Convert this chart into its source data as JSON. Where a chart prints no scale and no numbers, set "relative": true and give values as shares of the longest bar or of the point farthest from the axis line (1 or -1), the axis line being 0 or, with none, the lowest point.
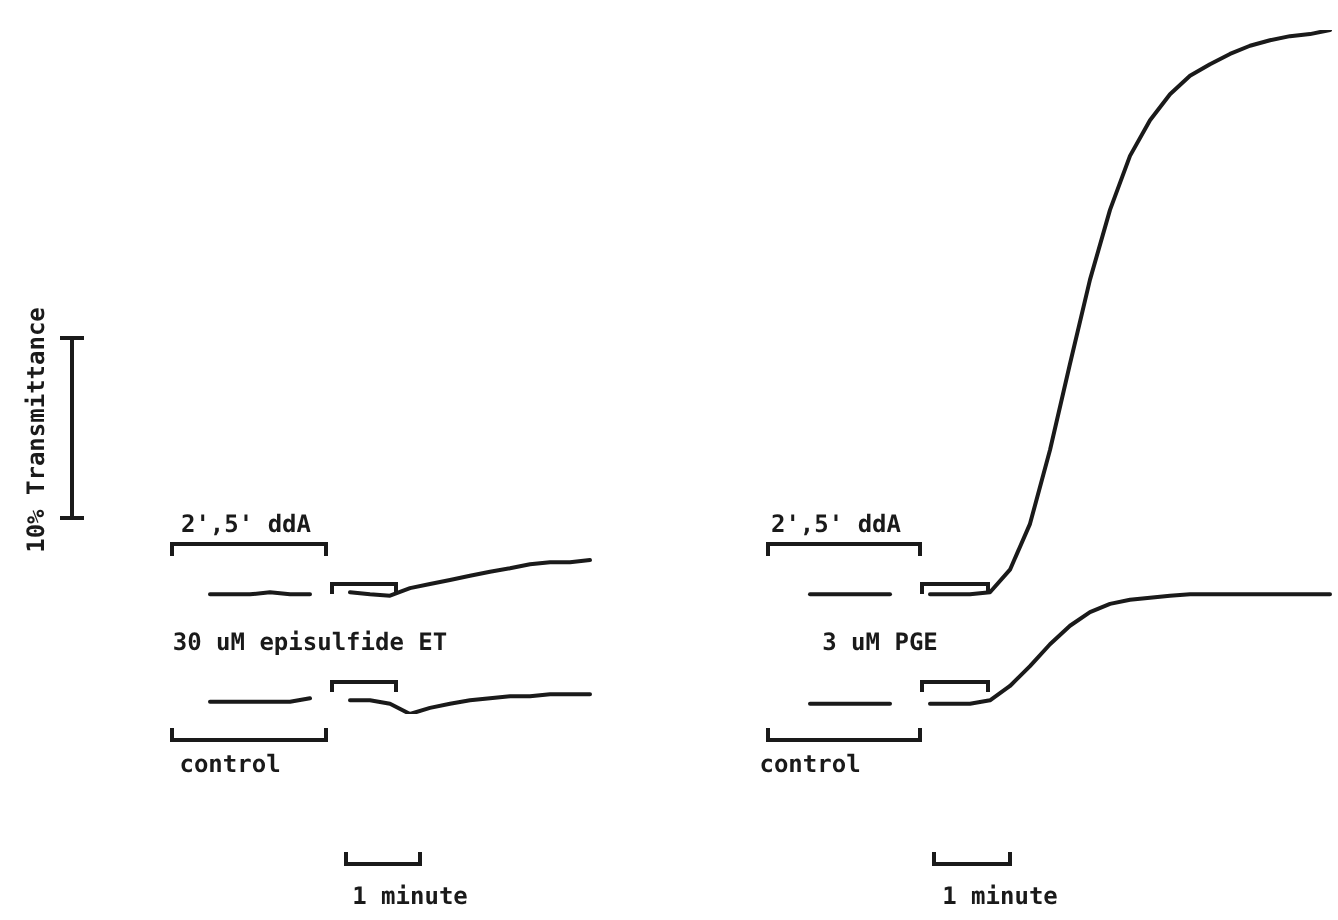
{
  "chart_data": {
    "type": "line",
    "relative": true,
    "tick_labels": false,
    "grid": false,
    "legend": false,
    "marker": "none",
    "line_style": "solid",
    "categories": [
      null,
      null,
      null,
      null,
      null,
      null,
      null,
      null,
      null,
      null,
      null,
      null,
      null,
      null,
      null,
      null,
      null,
      null,
      null,
      null,
      null,
      null,
      null,
      null,
      null,
      null,
      null,
      null,
      null,
      null,
      null,
      null,
      null,
      null,
      null,
      null,
      null,
      null,
      null,
      null,
      null,
      null,
      null,
      null,
      null,
      null,
      null,
      null,
      null,
      null,
      null,
      null,
      null,
      null,
      null,
      null,
      null,
      null
    ],
    "series": [
      {
        "color": "#1a1a1a",
        "values": [
          null,
          0.175,
          0.175,
          0.175,
          0.178,
          0.175,
          0.175,
          null,
          null,
          null,
          null,
          null,
          null,
          null,
          null,
          null,
          null,
          null,
          null,
          null,
          null,
          null,
          null,
          null,
          null,
          null,
          null,
          null,
          null,
          null,
          null,
          null,
          null,
          null,
          null,
          null,
          null,
          null,
          null,
          null,
          null,
          null,
          null,
          null,
          null,
          null,
          null,
          null,
          null,
          null,
          null,
          null,
          null,
          null,
          null,
          null,
          null,
          null
        ]
      },
      {
        "color": "#1a1a1a",
        "values": [
          null,
          null,
          null,
          null,
          null,
          null,
          null,
          null,
          0.178,
          0.175,
          0.173,
          0.184,
          0.19,
          0.196,
          0.202,
          0.208,
          0.213,
          0.219,
          0.222,
          0.222,
          0.225,
          null,
          null,
          null,
          null,
          null,
          null,
          null,
          null,
          null,
          null,
          null,
          null,
          null,
          null,
          null,
          null,
          null,
          null,
          null,
          null,
          null,
          null,
          null,
          null,
          null,
          null,
          null,
          null,
          null,
          null,
          null,
          null,
          null,
          null,
          null,
          null,
          null
        ]
      },
      {
        "color": "#1a1a1a",
        "values": [
          null,
          0.018,
          0.018,
          0.018,
          0.018,
          0.018,
          0.023,
          null,
          null,
          null,
          null,
          null,
          null,
          null,
          null,
          null,
          null,
          null,
          null,
          null,
          null,
          null,
          null,
          null,
          null,
          null,
          null,
          null,
          null,
          null,
          null,
          null,
          null,
          null,
          null,
          null,
          null,
          null,
          null,
          null,
          null,
          null,
          null,
          null,
          null,
          null,
          null,
          null,
          null,
          null,
          null,
          null,
          null,
          null,
          null,
          null,
          null,
          null
        ]
      },
      {
        "color": "#1a1a1a",
        "values": [
          null,
          null,
          null,
          null,
          null,
          null,
          null,
          null,
          0.02,
          0.02,
          0.015,
          0,
          0.009,
          0.015,
          0.02,
          0.023,
          0.026,
          0.026,
          0.029,
          0.029,
          0.029,
          null,
          null,
          null,
          null,
          null,
          null,
          null,
          null,
          null,
          null,
          null,
          null,
          null,
          null,
          null,
          null,
          null,
          null,
          null,
          null,
          null,
          null,
          null,
          null,
          null,
          null,
          null,
          null,
          null,
          null,
          null,
          null,
          null,
          null,
          null,
          null,
          null
        ]
      },
      {
        "color": "#1a1a1a",
        "values": [
          null,
          null,
          null,
          null,
          null,
          null,
          null,
          null,
          null,
          null,
          null,
          null,
          null,
          null,
          null,
          null,
          null,
          null,
          null,
          null,
          null,
          null,
          null,
          null,
          null,
          null,
          null,
          null,
          null,
          null,
          null,
          0.175,
          0.175,
          0.175,
          0.175,
          0.175,
          null,
          null,
          null,
          null,
          null,
          null,
          null,
          null,
          null,
          null,
          null,
          null,
          null,
          null,
          null,
          null,
          null,
          null,
          null,
          null,
          null,
          null
        ]
      },
      {
        "color": "#1a1a1a",
        "values": [
          null,
          null,
          null,
          null,
          null,
          null,
          null,
          null,
          null,
          null,
          null,
          null,
          null,
          null,
          null,
          null,
          null,
          null,
          null,
          null,
          null,
          null,
          null,
          null,
          null,
          null,
          null,
          null,
          null,
          null,
          null,
          null,
          null,
          null,
          null,
          null,
          null,
          0.175,
          0.175,
          0.175,
          0.178,
          0.211,
          0.278,
          0.386,
          0.512,
          0.635,
          0.737,
          0.816,
          0.868,
          0.906,
          0.933,
          0.95,
          0.965,
          0.977,
          0.985,
          0.991,
          0.994,
          1
        ]
      },
      {
        "color": "#1a1a1a",
        "values": [
          null,
          null,
          null,
          null,
          null,
          null,
          null,
          null,
          null,
          null,
          null,
          null,
          null,
          null,
          null,
          null,
          null,
          null,
          null,
          null,
          null,
          null,
          null,
          null,
          null,
          null,
          null,
          null,
          null,
          null,
          null,
          0.015,
          0.015,
          0.015,
          0.015,
          0.015,
          null,
          null,
          null,
          null,
          null,
          null,
          null,
          null,
          null,
          null,
          null,
          null,
          null,
          null,
          null,
          null,
          null,
          null,
          null,
          null,
          null,
          null
        ]
      },
      {
        "color": "#1a1a1a",
        "values": [
          null,
          null,
          null,
          null,
          null,
          null,
          null,
          null,
          null,
          null,
          null,
          null,
          null,
          null,
          null,
          null,
          null,
          null,
          null,
          null,
          null,
          null,
          null,
          null,
          null,
          null,
          null,
          null,
          null,
          null,
          null,
          null,
          null,
          null,
          null,
          null,
          null,
          0.015,
          0.015,
          0.015,
          0.02,
          0.041,
          0.07,
          0.102,
          0.129,
          0.149,
          0.161,
          0.167,
          0.17,
          0.173,
          0.175,
          0.175,
          0.175,
          0.175,
          0.175,
          0.175,
          0.175,
          0.175
        ]
      }
    ],
    "annotations": [
      "2',5' ddA",
      "30 uM episulfide ET",
      "control",
      "1 minute",
      "2',5' ddA",
      "3 uM PGE",
      "control",
      "1 minute",
      "10% Transmittance"
    ]
  }
}
